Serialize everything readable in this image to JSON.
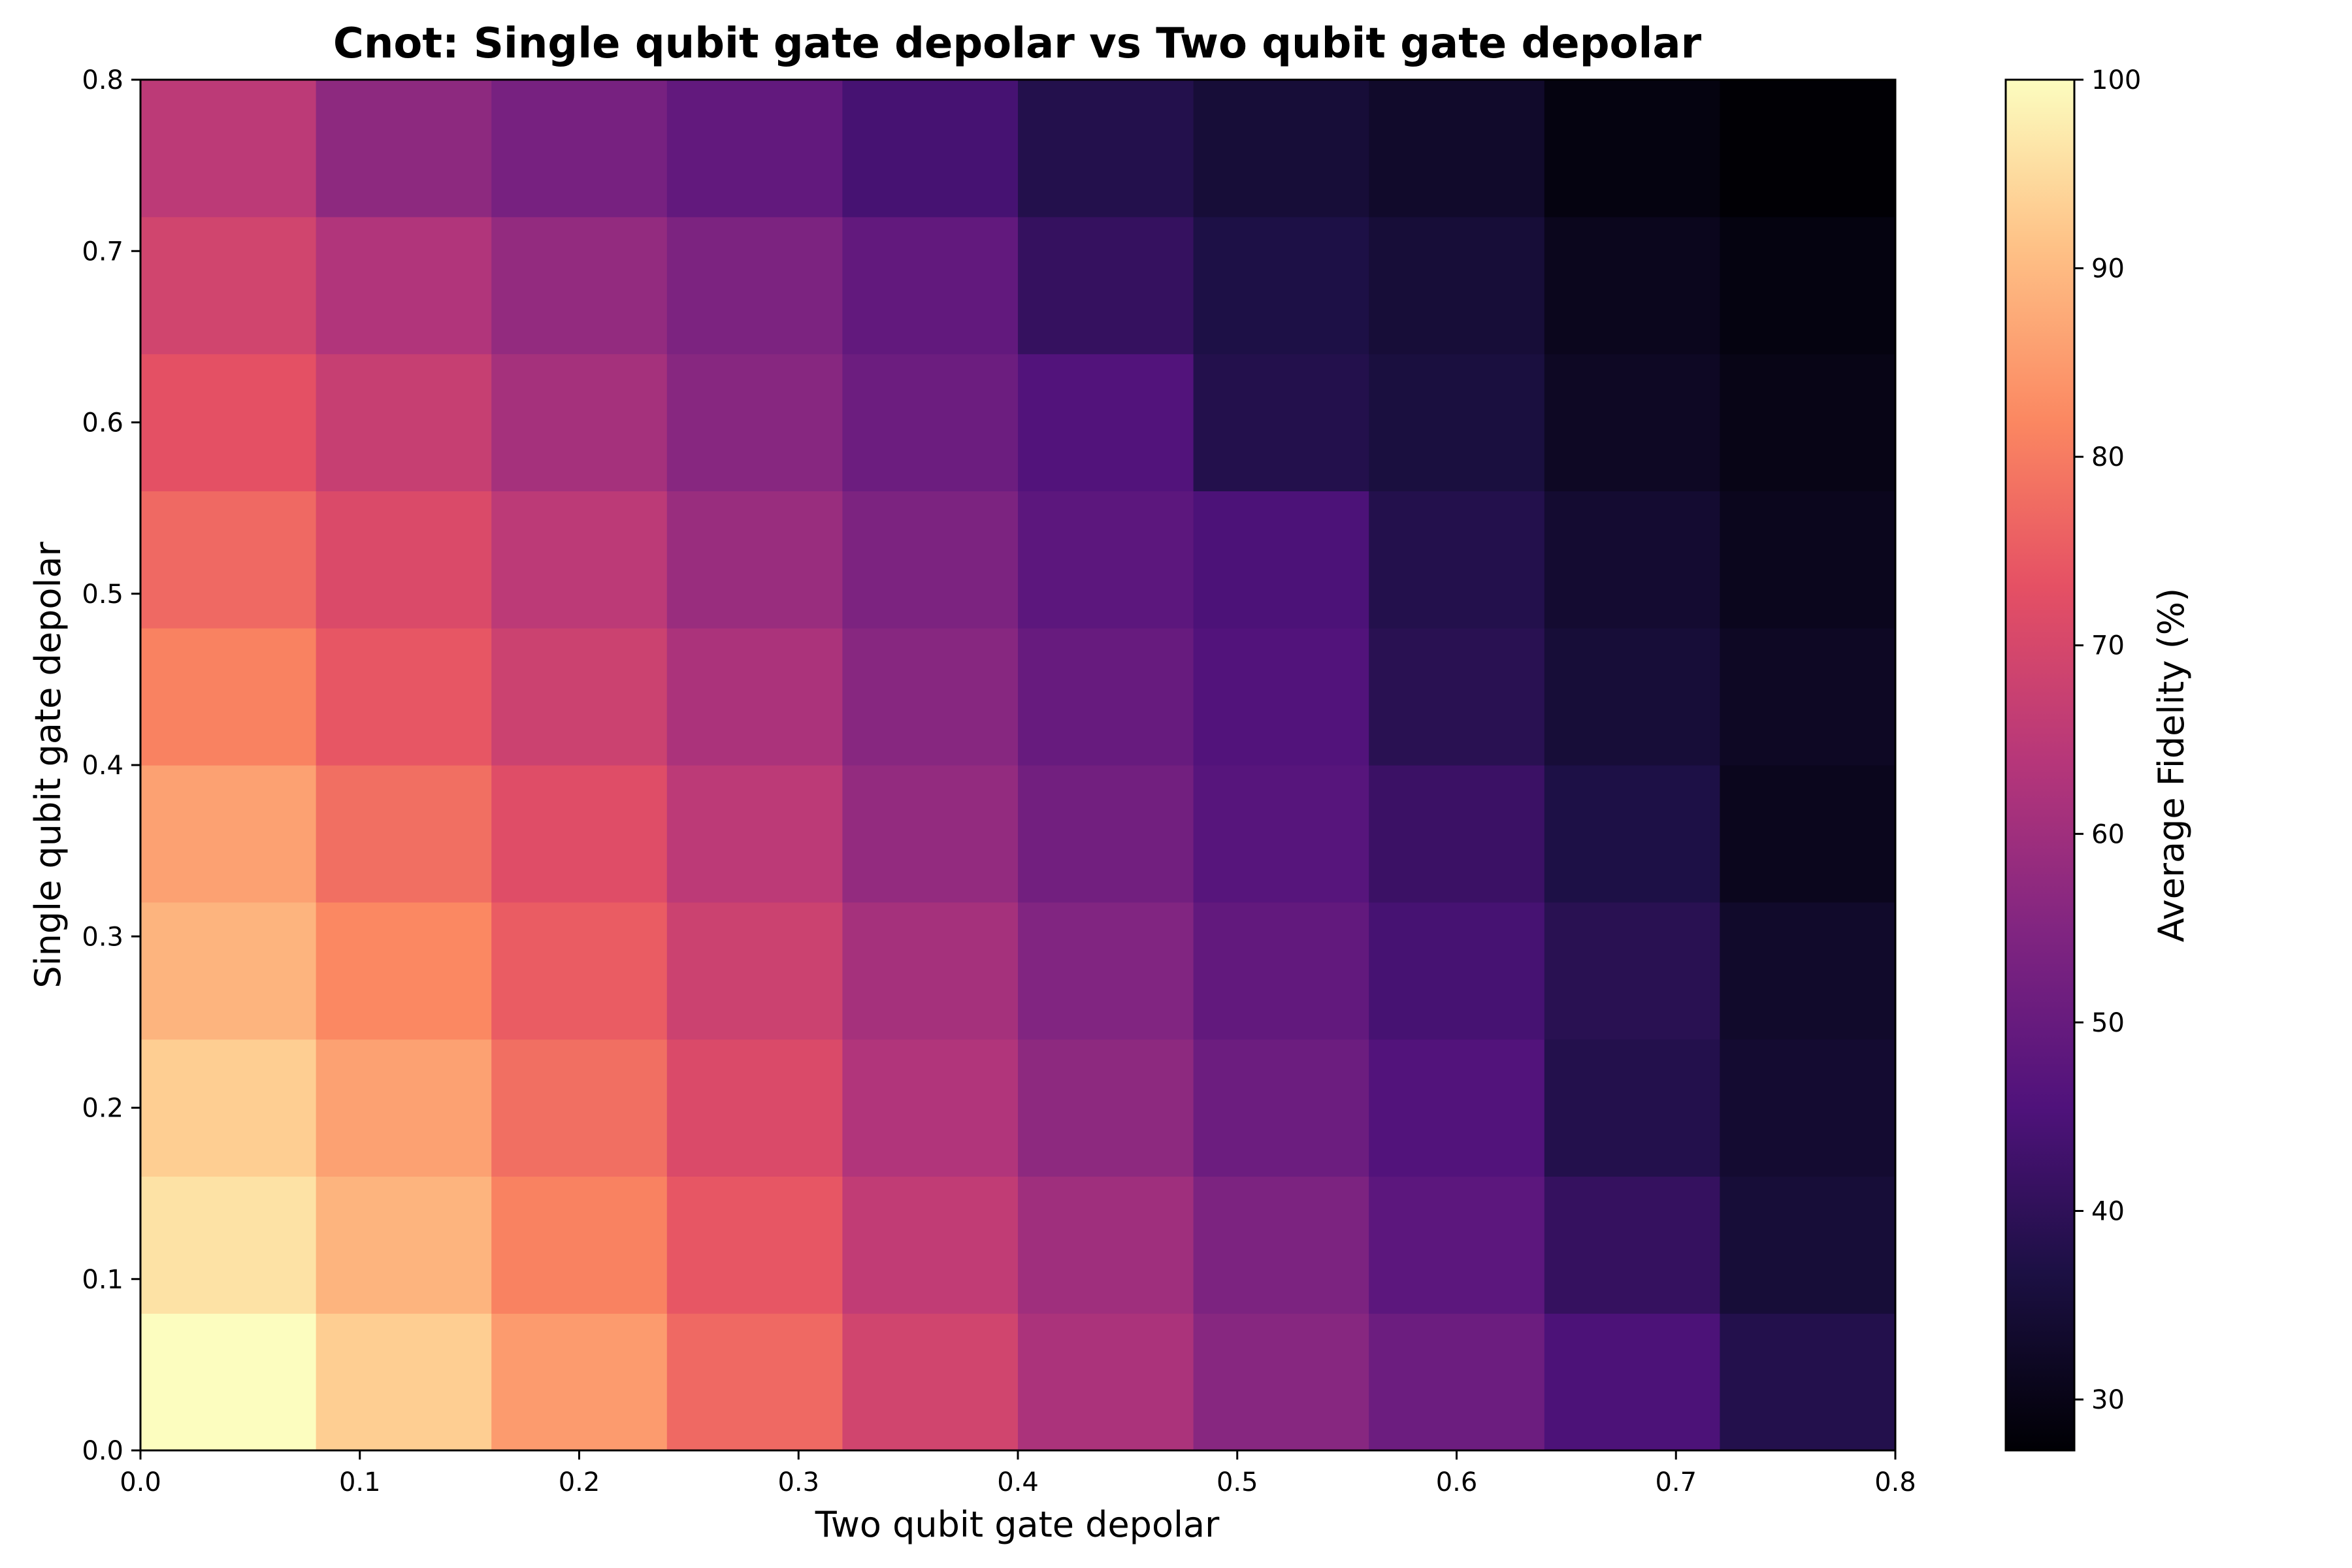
{
  "chart_data": {
    "type": "heatmap",
    "title": "Cnot: Single qubit gate depolar vs Two qubit gate depolar",
    "xlabel": "Two qubit gate depolar",
    "ylabel": "Single qubit gate depolar",
    "colorbar_label": "Average Fidelity (%)",
    "colormap": "magma",
    "xlim": [
      0.0,
      0.8
    ],
    "ylim": [
      0.0,
      0.8
    ],
    "x_ticks": [
      "0.0",
      "0.1",
      "0.2",
      "0.3",
      "0.4",
      "0.5",
      "0.6",
      "0.7",
      "0.8"
    ],
    "y_ticks": [
      "0.0",
      "0.1",
      "0.2",
      "0.3",
      "0.4",
      "0.5",
      "0.6",
      "0.7",
      "0.8"
    ],
    "colorbar_range": [
      27.3,
      100
    ],
    "colorbar_ticks": [
      "30",
      "40",
      "50",
      "60",
      "70",
      "80",
      "90",
      "100"
    ],
    "x_bin_edges": [
      0.0,
      0.08,
      0.16,
      0.24,
      0.32,
      0.4,
      0.48,
      0.56,
      0.64,
      0.72,
      0.8
    ],
    "y_bin_edges": [
      0.0,
      0.08,
      0.16,
      0.24,
      0.32,
      0.4,
      0.48,
      0.56,
      0.64,
      0.72,
      0.8
    ],
    "values": [
      [
        100.0,
        93.0,
        85.0,
        77.0,
        69.0,
        62.0,
        56.0,
        51.0,
        45.0,
        38.0
      ],
      [
        96.0,
        89.0,
        81.0,
        74.0,
        66.0,
        60.0,
        54.0,
        48.0,
        41.0,
        35.0
      ],
      [
        93.0,
        86.0,
        78.0,
        71.0,
        63.0,
        57.0,
        51.0,
        46.0,
        38.0,
        34.0
      ],
      [
        89.0,
        82.0,
        75.0,
        68.0,
        61.0,
        55.0,
        49.0,
        44.0,
        39.0,
        33.0
      ],
      [
        86.0,
        78.0,
        72.0,
        65.0,
        58.0,
        52.0,
        47.0,
        42.0,
        37.0,
        31.0
      ],
      [
        81.0,
        74.0,
        68.0,
        62.0,
        56.0,
        50.0,
        46.0,
        39.0,
        35.0,
        32.0
      ],
      [
        77.0,
        71.0,
        65.0,
        59.0,
        54.0,
        48.0,
        45.0,
        38.0,
        34.0,
        31.0
      ],
      [
        73.0,
        67.0,
        61.0,
        56.0,
        51.0,
        46.0,
        38.0,
        36.0,
        32.0,
        30.0
      ],
      [
        69.0,
        63.0,
        58.0,
        54.0,
        49.0,
        41.0,
        37.0,
        35.0,
        31.0,
        29.0
      ],
      [
        65.0,
        57.0,
        53.0,
        49.0,
        44.0,
        38.0,
        35.0,
        33.0,
        29.0,
        27.5
      ]
    ]
  }
}
